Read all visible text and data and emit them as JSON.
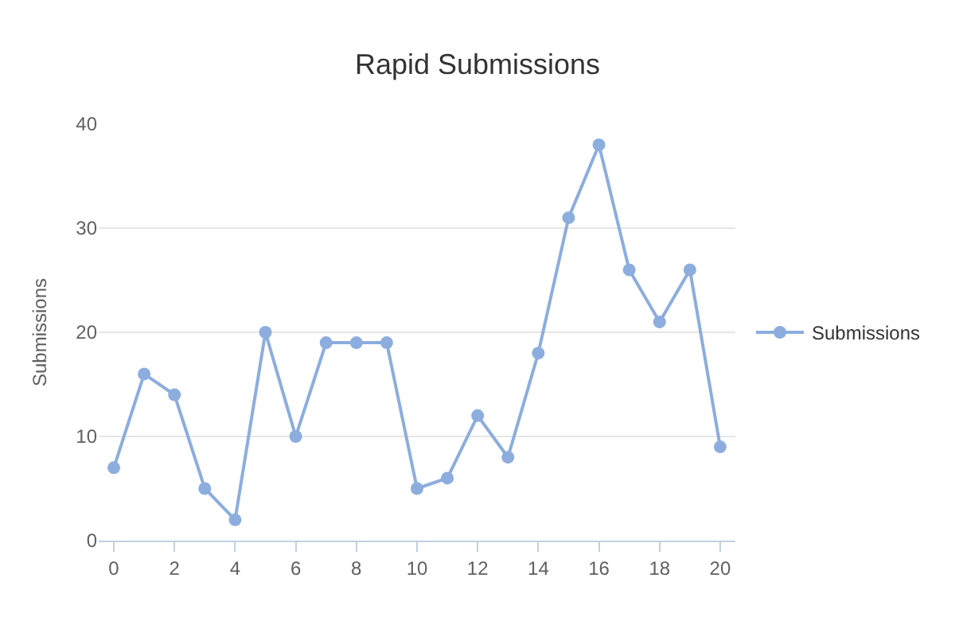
{
  "chart_data": {
    "type": "line",
    "title": "Rapid Submissions",
    "ylabel": "Submissions",
    "x": [
      0,
      1,
      2,
      3,
      4,
      5,
      6,
      7,
      8,
      9,
      10,
      11,
      12,
      13,
      14,
      15,
      16,
      17,
      18,
      19,
      20
    ],
    "series": [
      {
        "name": "Submissions",
        "color": "#8cadde",
        "values": [
          7,
          16,
          14,
          5,
          2,
          20,
          10,
          19,
          19,
          19,
          5,
          6,
          12,
          8,
          18,
          31,
          38,
          26,
          21,
          26,
          9
        ]
      }
    ],
    "xlim": [
      -0.5,
      20.5
    ],
    "xticks": [
      0,
      2,
      4,
      6,
      8,
      10,
      12,
      14,
      16,
      18,
      20
    ],
    "ylim": [
      0,
      40
    ],
    "yticks": [
      0,
      10,
      20,
      30,
      40
    ],
    "grid": "y",
    "legend": "right",
    "marker": "circle",
    "line_style": "solid"
  }
}
